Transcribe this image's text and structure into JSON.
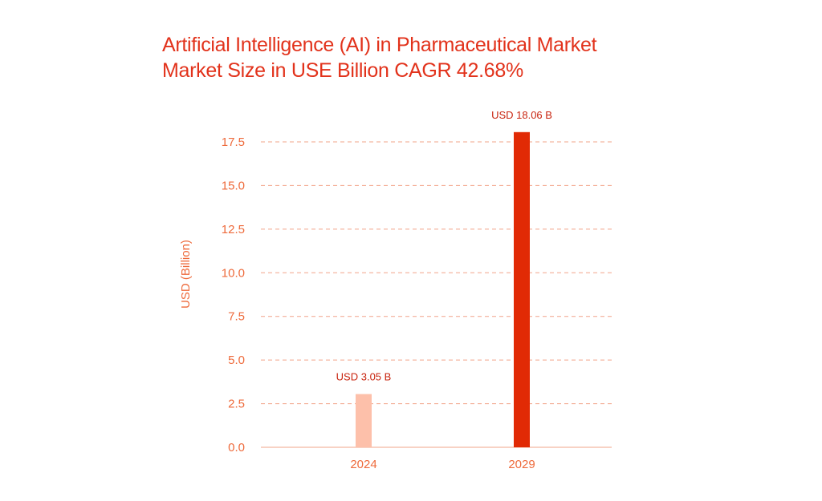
{
  "title": {
    "line1": "Artificial Intelligence (AI) in Pharmaceutical Market",
    "line2": "Market Size in USE Billion CAGR 42.68%"
  },
  "colors": {
    "title": "#e2321b",
    "axis_text": "#ee6a3b",
    "gridline": "#f2a48a",
    "bar_2024": "#fdc0aa",
    "bar_2029": "#e12a05",
    "data_label": "#c8240f"
  },
  "chart_data": {
    "type": "bar",
    "title": "Artificial Intelligence (AI) in Pharmaceutical Market",
    "subtitle": "Market Size in USE Billion CAGR 42.68%",
    "xlabel": "",
    "ylabel": "USD (Billion)",
    "categories": [
      "2024",
      "2029"
    ],
    "values": [
      3.05,
      18.06
    ],
    "data_labels": [
      "USD 3.05 B",
      "USD 18.06 B"
    ],
    "ylim": [
      0,
      17.5
    ],
    "yticks": [
      0.0,
      2.5,
      5.0,
      7.5,
      10.0,
      12.5,
      15.0,
      17.5
    ],
    "ytick_labels": [
      "0.0",
      "2.5",
      "5.0",
      "7.5",
      "10.0",
      "12.5",
      "15.0",
      "17.5"
    ],
    "grid": "horizontal dashed",
    "legend": "none"
  }
}
